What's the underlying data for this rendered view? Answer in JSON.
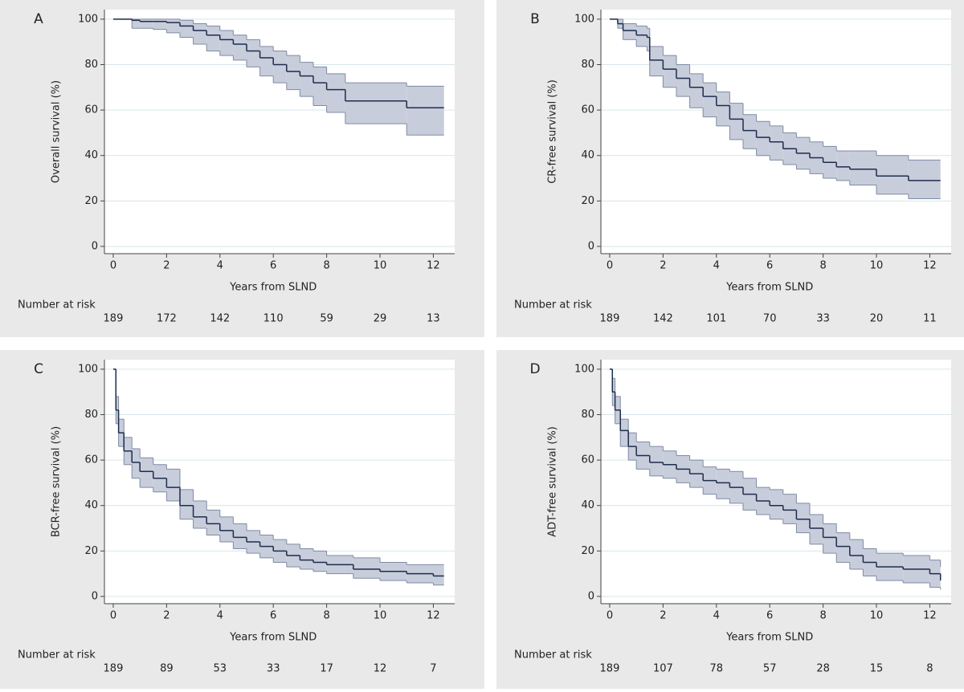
{
  "chart_data": [
    {
      "type": "step",
      "label": "A",
      "y_label": "Overall survival (%)",
      "x_label": "Years from SLND",
      "risk_label": "Number at risk",
      "at_risk": [
        189,
        172,
        142,
        110,
        59,
        29,
        13
      ],
      "xlim": [
        -0.33,
        12.8
      ],
      "ylim": [
        -3.2,
        104.2
      ],
      "xticks": [
        0,
        2,
        4,
        6,
        8,
        10,
        12
      ],
      "yticks": [
        0,
        20,
        40,
        60,
        80,
        100
      ],
      "grid": true,
      "color": "#1f2d4d",
      "band_color": "#c7cddb",
      "band_edge": "#7f8aa3",
      "x": [
        0,
        0.7,
        1,
        1.5,
        2,
        2.5,
        3,
        3.5,
        4,
        4.5,
        5,
        5.5,
        6,
        6.5,
        7,
        7.5,
        8,
        8.7,
        11,
        12.4
      ],
      "values": [
        100,
        99.5,
        99,
        99,
        98.5,
        97,
        95,
        93,
        91,
        89,
        86,
        83,
        80,
        77,
        75,
        72,
        69,
        64,
        61,
        61
      ],
      "lower": [
        100,
        96,
        96,
        95.5,
        94,
        92,
        89,
        86,
        84,
        82,
        79,
        75,
        72,
        69,
        66,
        62,
        59,
        54,
        49,
        49
      ],
      "upper": [
        100,
        100,
        100,
        100,
        100,
        99.5,
        98,
        97,
        95,
        93,
        91,
        88,
        86,
        84,
        81,
        79,
        76,
        72,
        70.5,
        70.5
      ]
    },
    {
      "type": "step",
      "label": "B",
      "y_label": "CR-free survival (%)",
      "x_label": "Years from SLND",
      "risk_label": "Number at risk",
      "at_risk": [
        189,
        142,
        101,
        70,
        33,
        20,
        11
      ],
      "xlim": [
        -0.33,
        12.8
      ],
      "ylim": [
        -3.2,
        104.2
      ],
      "xticks": [
        0,
        2,
        4,
        6,
        8,
        10,
        12
      ],
      "yticks": [
        0,
        20,
        40,
        60,
        80,
        100
      ],
      "grid": true,
      "color": "#1f2d4d",
      "band_color": "#c7cddb",
      "band_edge": "#7f8aa3",
      "x": [
        0,
        0.3,
        0.5,
        1,
        1.4,
        1.5,
        2,
        2.5,
        3,
        3.5,
        4,
        4.5,
        5,
        5.5,
        6,
        6.5,
        7,
        7.5,
        8,
        8.5,
        9,
        10,
        11.2,
        12.4
      ],
      "values": [
        100,
        98,
        95,
        93,
        92,
        82,
        78,
        74,
        70,
        66,
        62,
        56,
        51,
        48,
        46,
        43,
        41,
        39,
        37,
        35,
        34,
        31,
        29,
        29
      ],
      "lower": [
        100,
        96,
        91,
        88,
        86,
        75,
        70,
        66,
        61,
        57,
        53,
        47,
        43,
        40,
        38,
        36,
        34,
        32,
        30,
        29,
        27,
        23,
        21,
        21
      ],
      "upper": [
        100,
        100,
        98,
        97,
        96,
        88,
        84,
        80,
        76,
        72,
        68,
        63,
        58,
        55,
        53,
        50,
        48,
        46,
        44,
        42,
        42,
        40,
        38,
        38
      ]
    },
    {
      "type": "step",
      "label": "C",
      "y_label": "BCR-free survival (%)",
      "x_label": "Years from SLND",
      "risk_label": "Number at risk",
      "at_risk": [
        189,
        89,
        53,
        33,
        17,
        12,
        7
      ],
      "xlim": [
        -0.33,
        12.8
      ],
      "ylim": [
        -3.2,
        104.2
      ],
      "xticks": [
        0,
        2,
        4,
        6,
        8,
        10,
        12
      ],
      "yticks": [
        0,
        20,
        40,
        60,
        80,
        100
      ],
      "grid": true,
      "color": "#1f2d4d",
      "band_color": "#c7cddb",
      "band_edge": "#7f8aa3",
      "x": [
        0,
        0.1,
        0.2,
        0.4,
        0.7,
        1,
        1.5,
        2,
        2.5,
        3,
        3.5,
        4,
        4.5,
        5,
        5.5,
        6,
        6.5,
        7,
        7.5,
        8,
        9,
        10,
        11,
        12,
        12.4
      ],
      "values": [
        100,
        82,
        72,
        64,
        59,
        55,
        52,
        48,
        40,
        35,
        32,
        29,
        26,
        24,
        22,
        20,
        18,
        16,
        15,
        14,
        12,
        11,
        10,
        9,
        9
      ],
      "lower": [
        100,
        76,
        66,
        58,
        52,
        48,
        46,
        42,
        34,
        30,
        27,
        24,
        21,
        19,
        17,
        15,
        13,
        12,
        11,
        10,
        8,
        7,
        6,
        5,
        5
      ],
      "upper": [
        100,
        88,
        78,
        70,
        65,
        61,
        58,
        56,
        47,
        42,
        38,
        35,
        32,
        29,
        27,
        25,
        23,
        21,
        20,
        18,
        17,
        15,
        14,
        14,
        14
      ]
    },
    {
      "type": "step",
      "label": "D",
      "y_label": "ADT-free survival (%)",
      "x_label": "Years from SLND",
      "risk_label": "Number at risk",
      "at_risk": [
        189,
        107,
        78,
        57,
        28,
        15,
        8
      ],
      "xlim": [
        -0.33,
        12.8
      ],
      "ylim": [
        -3.2,
        104.2
      ],
      "xticks": [
        0,
        2,
        4,
        6,
        8,
        10,
        12
      ],
      "yticks": [
        0,
        20,
        40,
        60,
        80,
        100
      ],
      "grid": true,
      "color": "#1f2d4d",
      "band_color": "#c7cddb",
      "band_edge": "#7f8aa3",
      "x": [
        0,
        0.1,
        0.2,
        0.4,
        0.7,
        1,
        1.5,
        2,
        2.5,
        3,
        3.5,
        4,
        4.5,
        5,
        5.5,
        6,
        6.5,
        7,
        7.5,
        8,
        8.5,
        9,
        9.5,
        10,
        11,
        12,
        12.4
      ],
      "values": [
        100,
        90,
        82,
        73,
        66,
        62,
        59,
        58,
        56,
        54,
        51,
        50,
        48,
        45,
        42,
        40,
        38,
        34,
        30,
        26,
        22,
        18,
        15,
        13,
        12,
        10,
        7
      ],
      "lower": [
        100,
        84,
        76,
        66,
        60,
        56,
        53,
        52,
        50,
        48,
        45,
        43,
        41,
        38,
        36,
        34,
        32,
        28,
        23,
        19,
        15,
        12,
        9,
        7,
        6,
        4,
        3
      ],
      "upper": [
        100,
        96,
        88,
        78,
        72,
        68,
        66,
        64,
        62,
        60,
        57,
        56,
        55,
        52,
        48,
        47,
        45,
        41,
        36,
        32,
        28,
        25,
        21,
        19,
        18,
        16,
        13
      ]
    }
  ]
}
